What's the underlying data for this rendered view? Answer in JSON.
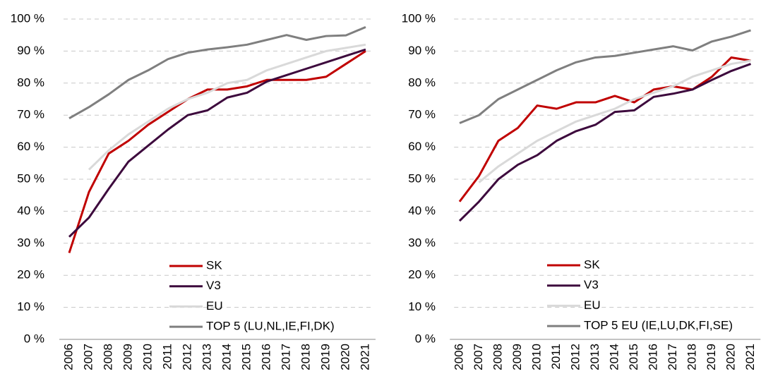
{
  "chart_data": [
    {
      "type": "line",
      "categories": [
        "2006",
        "2007",
        "2008",
        "2009",
        "2010",
        "2011",
        "2012",
        "2013",
        "2014",
        "2015",
        "2016",
        "2017",
        "2018",
        "2019",
        "2020",
        "2021"
      ],
      "ylim": [
        0,
        100
      ],
      "yticks": [
        {
          "value": 0,
          "label": "0 %"
        },
        {
          "value": 10,
          "label": "10 %"
        },
        {
          "value": 20,
          "label": "20 %"
        },
        {
          "value": 30,
          "label": "30 %"
        },
        {
          "value": 40,
          "label": "40 %"
        },
        {
          "value": 50,
          "label": "50 %"
        },
        {
          "value": 60,
          "label": "60 %"
        },
        {
          "value": 70,
          "label": "70 %"
        },
        {
          "value": 80,
          "label": "80 %"
        },
        {
          "value": 90,
          "label": "90 %"
        },
        {
          "value": 100,
          "label": "100 %"
        }
      ],
      "grid": true,
      "legend": "lower right",
      "series": [
        {
          "name": "SK",
          "color": "#c00000",
          "values": [
            27,
            46,
            58,
            62,
            67,
            71,
            75,
            78,
            78,
            79,
            81,
            81,
            81,
            82,
            86,
            90
          ]
        },
        {
          "name": "V3",
          "color": "#3d0a3d",
          "values": [
            32,
            38,
            47,
            55.5,
            60.5,
            65.5,
            70,
            71.5,
            75.5,
            77,
            80.5,
            82.5,
            84.5,
            86.5,
            88.5,
            90.5
          ]
        },
        {
          "name": "EU",
          "color": "#d9d9d9",
          "values": [
            null,
            53,
            59,
            64,
            68,
            72,
            75,
            77,
            80,
            81,
            84,
            86,
            88,
            90,
            91,
            92
          ]
        },
        {
          "name": "TOP 5 (LU,NL,IE,FI,DK)",
          "color": "#7f7f7f",
          "values": [
            69,
            72.5,
            76.5,
            81,
            84,
            87.5,
            89.5,
            90.5,
            91.2,
            92,
            93.5,
            95,
            93.5,
            94.7,
            94.9,
            97.5
          ]
        }
      ]
    },
    {
      "type": "line",
      "categories": [
        "2006",
        "2007",
        "2008",
        "2009",
        "2010",
        "2011",
        "2012",
        "2013",
        "2014",
        "2015",
        "2016",
        "2017",
        "2018",
        "2019",
        "2020",
        "2021"
      ],
      "ylim": [
        0,
        100
      ],
      "yticks": [
        {
          "value": 0,
          "label": "0 %"
        },
        {
          "value": 10,
          "label": "10 %"
        },
        {
          "value": 20,
          "label": "20 %"
        },
        {
          "value": 30,
          "label": "30 %"
        },
        {
          "value": 40,
          "label": "40 %"
        },
        {
          "value": 50,
          "label": "50 %"
        },
        {
          "value": 60,
          "label": "60 %"
        },
        {
          "value": 70,
          "label": "70 %"
        },
        {
          "value": 80,
          "label": "80 %"
        },
        {
          "value": 90,
          "label": "90 %"
        },
        {
          "value": 100,
          "label": "100 %"
        }
      ],
      "grid": true,
      "legend": "lower right",
      "series": [
        {
          "name": "SK",
          "color": "#c00000",
          "values": [
            43,
            51,
            62,
            66,
            73,
            72,
            74,
            74,
            76,
            74,
            78,
            79,
            78,
            82,
            88,
            87
          ]
        },
        {
          "name": "V3",
          "color": "#3d0a3d",
          "values": [
            37,
            43,
            50,
            54.5,
            57.5,
            62,
            65,
            67,
            71,
            71.5,
            75.7,
            76.7,
            78,
            81,
            83.8,
            86
          ]
        },
        {
          "name": "EU",
          "color": "#d9d9d9",
          "values": [
            null,
            49,
            54,
            58,
            62,
            65,
            68,
            70,
            72,
            75,
            77,
            79,
            82,
            84,
            86,
            87
          ]
        },
        {
          "name": "TOP 5 EU (IE,LU,DK,FI,SE)",
          "color": "#7f7f7f",
          "values": [
            67.5,
            70,
            75,
            78,
            81,
            84,
            86.5,
            88,
            88.5,
            89.5,
            90.5,
            91.5,
            90.2,
            93,
            94.5,
            96.5
          ]
        }
      ]
    }
  ]
}
